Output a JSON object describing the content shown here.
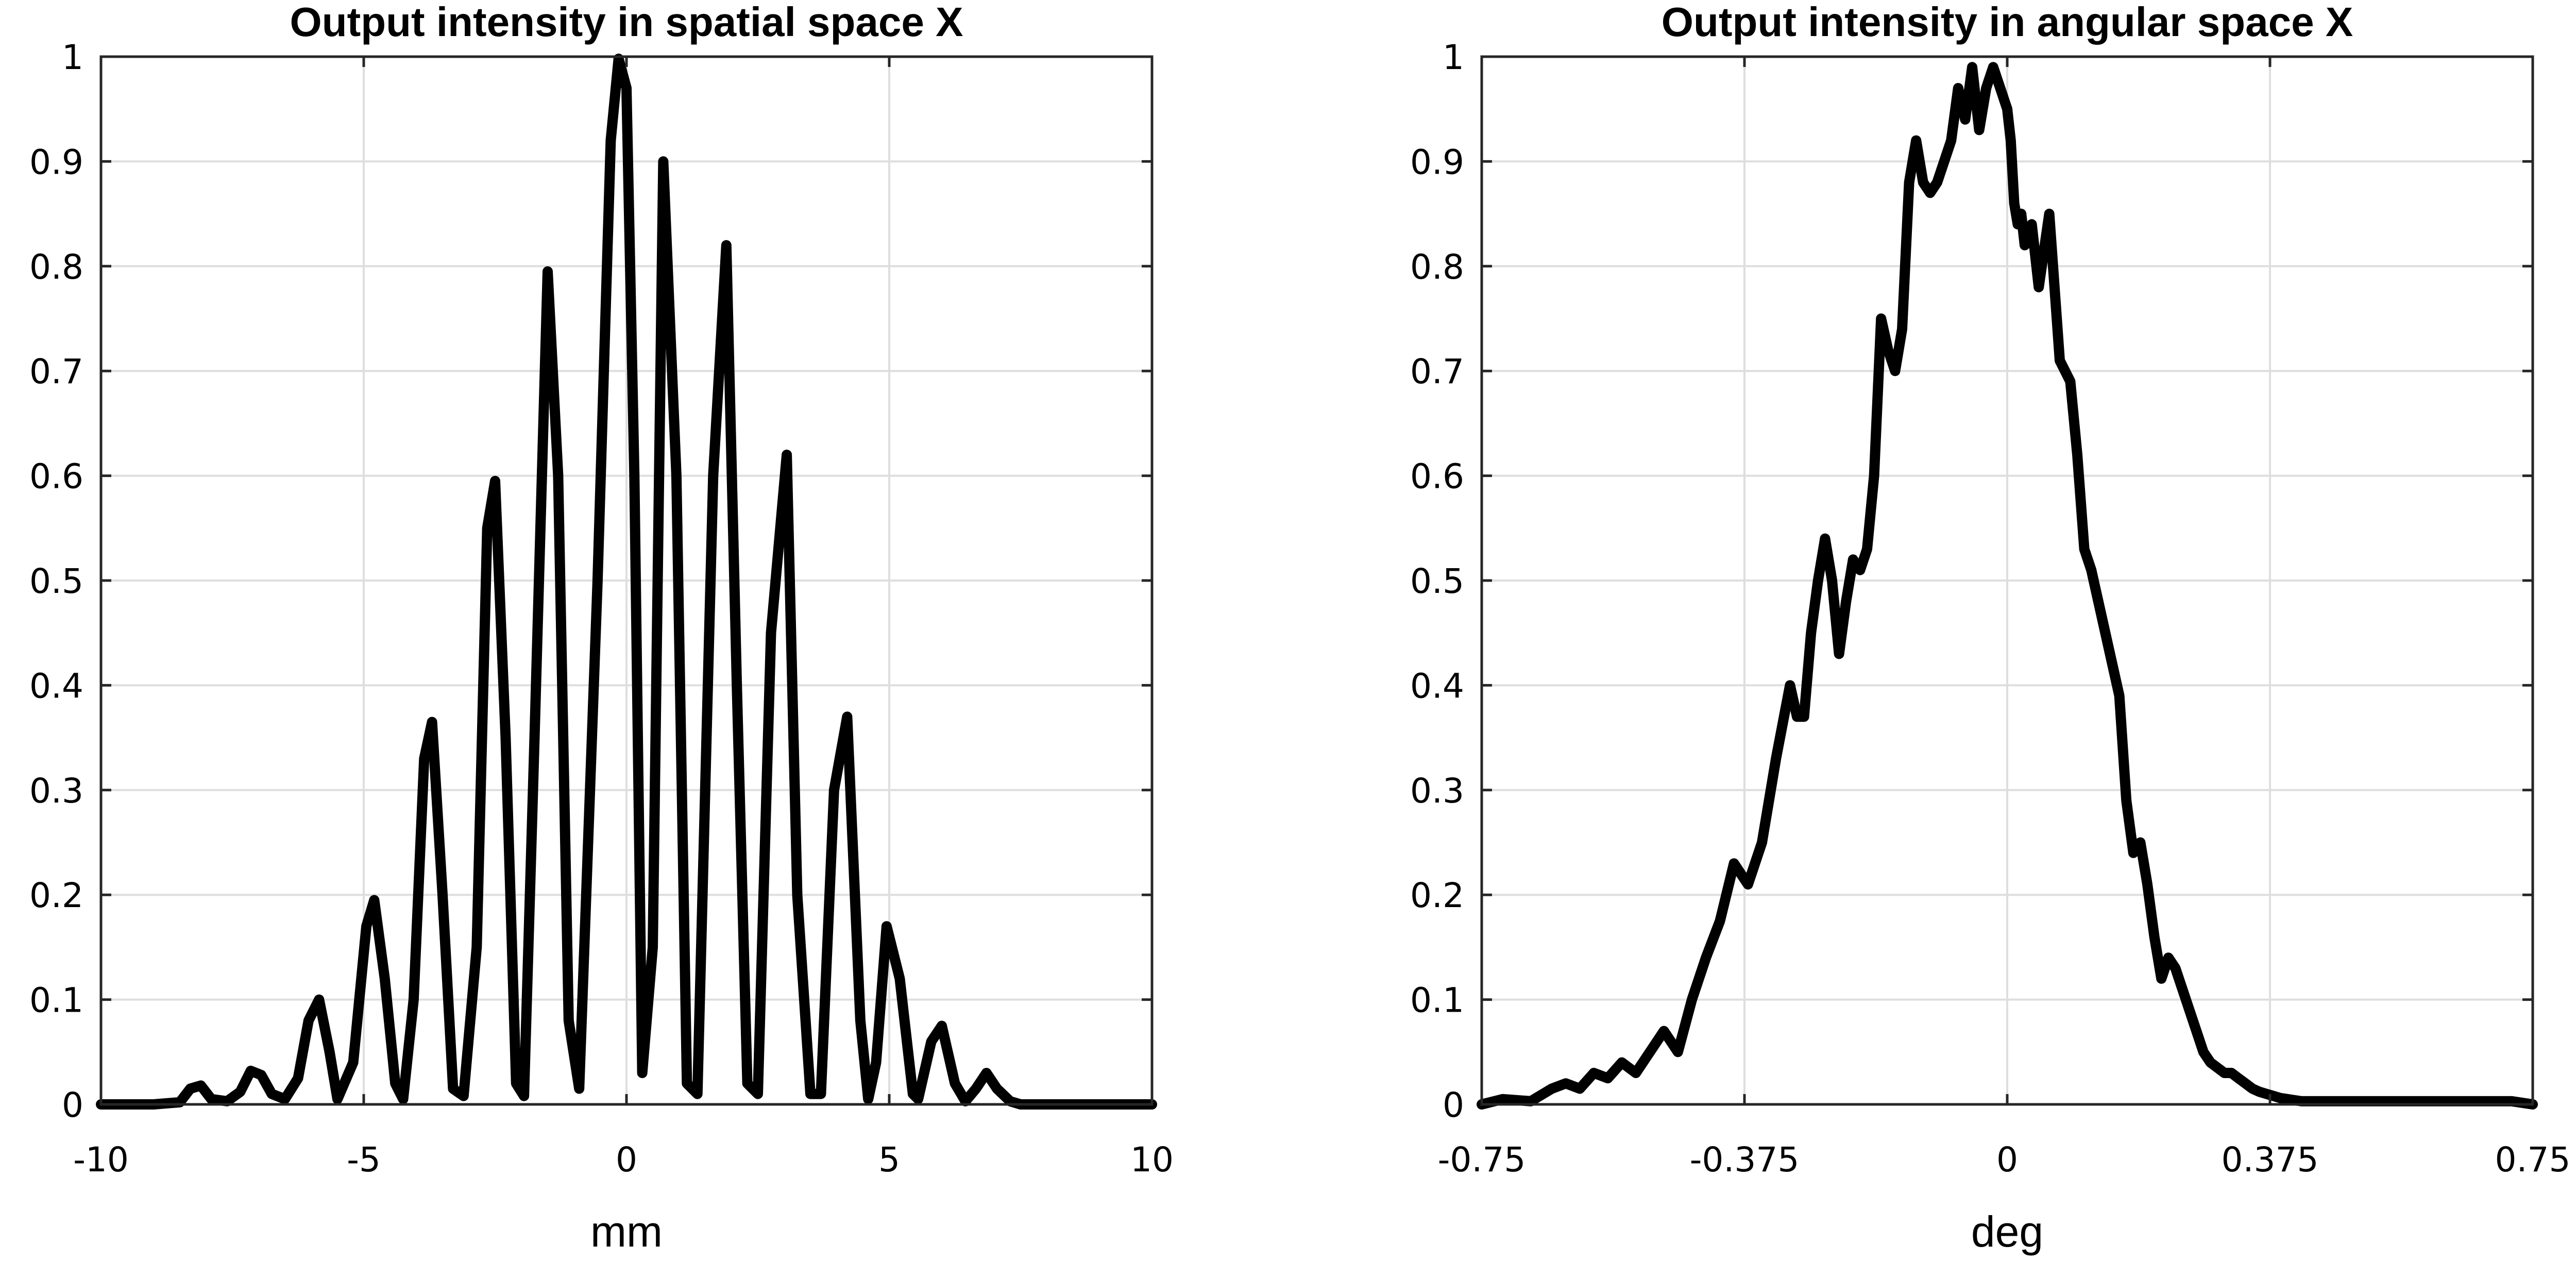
{
  "chart_data": [
    {
      "type": "line",
      "title": "Output intensity in spatial space X",
      "xlabel": "mm",
      "ylabel": "",
      "xlim": [
        -10,
        10
      ],
      "ylim": [
        0,
        1
      ],
      "xticks": [
        -10,
        -5,
        0,
        5,
        10
      ],
      "xtick_labels": [
        "-10",
        "-5",
        "0",
        "5",
        "10"
      ],
      "yticks": [
        0,
        0.1,
        0.2,
        0.3,
        0.4,
        0.5,
        0.6,
        0.7,
        0.8,
        0.9,
        1
      ],
      "ytick_labels": [
        "0",
        "0.1",
        "0.2",
        "0.3",
        "0.4",
        "0.5",
        "0.6",
        "0.7",
        "0.8",
        "0.9",
        "1"
      ],
      "grid": true,
      "line_color": "#000000",
      "series": [
        {
          "x": [
            -10,
            -9,
            -8.5,
            -8.3,
            -8.1,
            -7.9,
            -7.6,
            -7.35,
            -7.15,
            -6.95,
            -6.75,
            -6.5,
            -6.25,
            -6.05,
            -5.85,
            -5.65,
            -5.5,
            -5.2,
            -4.95,
            -4.8,
            -4.6,
            -4.4,
            -4.25,
            -4.05,
            -3.85,
            -3.7,
            -3.5,
            -3.3,
            -3.1,
            -2.85,
            -2.65,
            -2.5,
            -2.3,
            -2.1,
            -1.95,
            -1.75,
            -1.5,
            -1.3,
            -1.1,
            -0.9,
            -0.55,
            -0.3,
            -0.15,
            0,
            0.15,
            0.3,
            0.5,
            0.7,
            0.95,
            1.15,
            1.35,
            1.65,
            1.9,
            2.1,
            2.3,
            2.5,
            2.75,
            3.05,
            3.25,
            3.5,
            3.7,
            3.95,
            4.2,
            4.45,
            4.6,
            4.75,
            4.95,
            5.2,
            5.45,
            5.55,
            5.8,
            6.0,
            6.25,
            6.45,
            6.65,
            6.85,
            7.05,
            7.3,
            7.5,
            7.7,
            7.85,
            8.0,
            8.2,
            8.5,
            9.0,
            10
          ],
          "y": [
            0,
            0,
            0.002,
            0.015,
            0.018,
            0.005,
            0.003,
            0.012,
            0.032,
            0.028,
            0.01,
            0.005,
            0.025,
            0.08,
            0.1,
            0.05,
            0.005,
            0.04,
            0.17,
            0.195,
            0.12,
            0.02,
            0.005,
            0.1,
            0.33,
            0.365,
            0.2,
            0.015,
            0.008,
            0.15,
            0.55,
            0.595,
            0.35,
            0.02,
            0.008,
            0.35,
            0.795,
            0.6,
            0.08,
            0.015,
            0.5,
            0.92,
            0.998,
            0.97,
            0.6,
            0.03,
            0.15,
            0.9,
            0.6,
            0.02,
            0.01,
            0.6,
            0.82,
            0.4,
            0.02,
            0.01,
            0.45,
            0.62,
            0.2,
            0.01,
            0.01,
            0.3,
            0.37,
            0.08,
            0.005,
            0.04,
            0.17,
            0.12,
            0.01,
            0.005,
            0.06,
            0.075,
            0.02,
            0.003,
            0.015,
            0.03,
            0.015,
            0.003,
            0,
            0,
            0,
            0,
            0,
            0,
            0,
            0
          ]
        }
      ]
    },
    {
      "type": "line",
      "title": "Output intensity in angular space X",
      "xlabel": "deg",
      "ylabel": "",
      "xlim": [
        -0.75,
        0.75
      ],
      "ylim": [
        0,
        1
      ],
      "xticks": [
        -0.75,
        -0.375,
        0,
        0.375,
        0.75
      ],
      "xtick_labels": [
        "-0.75",
        "-0.375",
        "0",
        "0.375",
        "0.75"
      ],
      "yticks": [
        0,
        0.1,
        0.2,
        0.3,
        0.4,
        0.5,
        0.6,
        0.7,
        0.8,
        0.9,
        1
      ],
      "ytick_labels": [
        "0",
        "0.1",
        "0.2",
        "0.3",
        "0.4",
        "0.5",
        "0.6",
        "0.7",
        "0.8",
        "0.9",
        "1"
      ],
      "grid": true,
      "line_color": "#000000",
      "series": [
        {
          "x": [
            -0.75,
            -0.72,
            -0.68,
            -0.65,
            -0.63,
            -0.61,
            -0.59,
            -0.57,
            -0.55,
            -0.53,
            -0.51,
            -0.49,
            -0.47,
            -0.45,
            -0.43,
            -0.41,
            -0.39,
            -0.37,
            -0.36,
            -0.35,
            -0.33,
            -0.31,
            -0.3,
            -0.29,
            -0.28,
            -0.27,
            -0.26,
            -0.25,
            -0.24,
            -0.23,
            -0.22,
            -0.21,
            -0.2,
            -0.19,
            -0.18,
            -0.17,
            -0.16,
            -0.15,
            -0.14,
            -0.13,
            -0.12,
            -0.11,
            -0.1,
            -0.09,
            -0.08,
            -0.07,
            -0.06,
            -0.05,
            -0.04,
            -0.03,
            -0.02,
            -0.01,
            0,
            0.005,
            0.01,
            0.015,
            0.02,
            0.025,
            0.035,
            0.045,
            0.06,
            0.075,
            0.09,
            0.1,
            0.11,
            0.12,
            0.13,
            0.14,
            0.15,
            0.16,
            0.17,
            0.18,
            0.19,
            0.2,
            0.21,
            0.22,
            0.23,
            0.24,
            0.25,
            0.26,
            0.27,
            0.28,
            0.29,
            0.3,
            0.31,
            0.32,
            0.33,
            0.34,
            0.35,
            0.36,
            0.37,
            0.38,
            0.39,
            0.4,
            0.41,
            0.42,
            0.43,
            0.44,
            0.45,
            0.47,
            0.49,
            0.51,
            0.53,
            0.55,
            0.57,
            0.59,
            0.61,
            0.63,
            0.65,
            0.68,
            0.72,
            0.75
          ],
          "y": [
            0,
            0.005,
            0.003,
            0.015,
            0.02,
            0.015,
            0.03,
            0.025,
            0.04,
            0.03,
            0.05,
            0.07,
            0.05,
            0.1,
            0.14,
            0.175,
            0.23,
            0.21,
            0.23,
            0.25,
            0.33,
            0.4,
            0.37,
            0.37,
            0.45,
            0.5,
            0.54,
            0.5,
            0.43,
            0.48,
            0.52,
            0.51,
            0.53,
            0.6,
            0.75,
            0.72,
            0.7,
            0.74,
            0.88,
            0.92,
            0.88,
            0.87,
            0.88,
            0.9,
            0.92,
            0.97,
            0.94,
            0.99,
            0.93,
            0.97,
            0.99,
            0.97,
            0.95,
            0.92,
            0.86,
            0.84,
            0.85,
            0.82,
            0.84,
            0.78,
            0.85,
            0.71,
            0.69,
            0.62,
            0.53,
            0.51,
            0.48,
            0.45,
            0.42,
            0.39,
            0.29,
            0.24,
            0.25,
            0.21,
            0.16,
            0.12,
            0.14,
            0.13,
            0.11,
            0.09,
            0.07,
            0.05,
            0.04,
            0.035,
            0.03,
            0.03,
            0.025,
            0.02,
            0.015,
            0.012,
            0.01,
            0.008,
            0.006,
            0.005,
            0.004,
            0.003,
            0.003,
            0.003,
            0.003,
            0.003,
            0.003,
            0.003,
            0.003,
            0.003,
            0.003,
            0.003,
            0.003,
            0.003,
            0.003,
            0.003,
            0.003,
            0
          ]
        }
      ]
    }
  ]
}
